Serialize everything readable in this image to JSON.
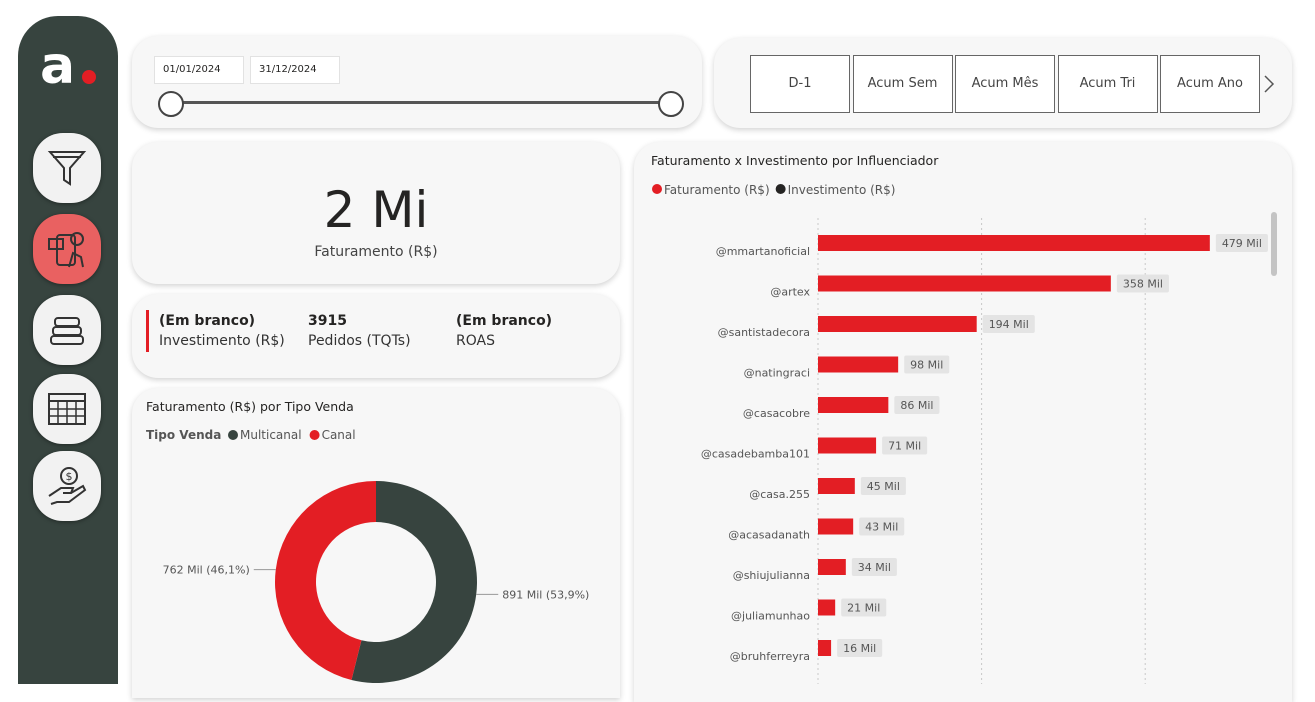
{
  "sidebar": {
    "logo": "a"
  },
  "date_filter": {
    "start": "01/01/2024",
    "end": "31/12/2024"
  },
  "period_buttons": [
    "D-1",
    "Acum Sem",
    "Acum Mês",
    "Acum Tri",
    "Acum Ano"
  ],
  "kpi": {
    "value": "2 Mi",
    "label": "Faturamento (R$)"
  },
  "metrics": [
    {
      "value": "(Em branco)",
      "label": "Investimento (R$)"
    },
    {
      "value": "3915",
      "label": "Pedidos (TQTs)"
    },
    {
      "value": "(Em branco)",
      "label": "ROAS"
    }
  ],
  "donut_chart": {
    "type": "donut",
    "title": "Faturamento (R$) por Tipo Venda",
    "legend_title": "Tipo Venda",
    "categories": [
      "Multicanal",
      "Canal"
    ],
    "colors": [
      "#37443f",
      "#e31e24"
    ],
    "values": [
      891,
      762
    ],
    "value_labels": [
      "891 Mil (53,9%)",
      "762 Mil (46,1%)"
    ]
  },
  "bar_chart": {
    "type": "hbar",
    "title": "Faturamento x Investimento por Influenciador",
    "legend": [
      {
        "name": "Faturamento (R$)",
        "color": "#e31e24"
      },
      {
        "name": "Investimento (R$)",
        "color": "#252423"
      }
    ],
    "categories": [
      "@mmartanoficial",
      "@artex",
      "@santistadecora",
      "@natingraci",
      "@casacobre",
      "@casadebamba101",
      "@casa.255",
      "@acasadanath",
      "@shiujulianna",
      "@juliamunhao",
      "@bruhferreyra"
    ],
    "series": [
      {
        "name": "Faturamento (R$)",
        "color": "#e31e24",
        "values": [
          479,
          358,
          194,
          98,
          86,
          71,
          45,
          43,
          34,
          21,
          16
        ],
        "value_labels": [
          "479 Mil",
          "358 Mil",
          "194 Mil",
          "98 Mil",
          "86 Mil",
          "71 Mil",
          "45 Mil",
          "43 Mil",
          "34 Mil",
          "21 Mil",
          "16 Mil"
        ]
      }
    ],
    "xlim": [
      0,
      550
    ],
    "xticks": [
      0,
      200,
      400
    ],
    "grid": true
  }
}
